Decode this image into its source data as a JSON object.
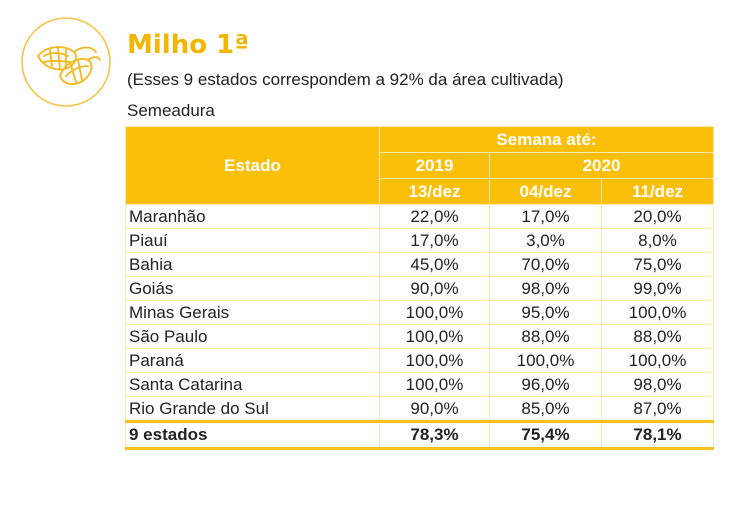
{
  "header": {
    "title": "Milho 1ª",
    "subtitle": "(Esses 9 estados correspondem a 92% da área cultivada)",
    "section": "Semeadura",
    "icon": "corn-icon",
    "accent_color": "#fbbf0a"
  },
  "table": {
    "col_estado": "Estado",
    "col_group": "Semana até:",
    "years": [
      "2019",
      "2020"
    ],
    "weeks": [
      "13/dez",
      "04/dez",
      "11/dez"
    ],
    "rows": [
      {
        "estado": "Maranhão",
        "v1": "22,0%",
        "v2": "17,0%",
        "v3": "20,0%"
      },
      {
        "estado": "Piauí",
        "v1": "17,0%",
        "v2": "3,0%",
        "v3": "8,0%"
      },
      {
        "estado": "Bahia",
        "v1": "45,0%",
        "v2": "70,0%",
        "v3": "75,0%"
      },
      {
        "estado": "Goiás",
        "v1": "90,0%",
        "v2": "98,0%",
        "v3": "99,0%"
      },
      {
        "estado": "Minas Gerais",
        "v1": "100,0%",
        "v2": "95,0%",
        "v3": "100,0%"
      },
      {
        "estado": "São Paulo",
        "v1": "100,0%",
        "v2": "88,0%",
        "v3": "88,0%"
      },
      {
        "estado": "Paraná",
        "v1": "100,0%",
        "v2": "100,0%",
        "v3": "100,0%"
      },
      {
        "estado": "Santa Catarina",
        "v1": "100,0%",
        "v2": "96,0%",
        "v3": "98,0%"
      },
      {
        "estado": "Rio Grande do Sul",
        "v1": "90,0%",
        "v2": "85,0%",
        "v3": "87,0%"
      }
    ],
    "total": {
      "estado": "9 estados",
      "v1": "78,3%",
      "v2": "75,4%",
      "v3": "78,1%"
    }
  }
}
